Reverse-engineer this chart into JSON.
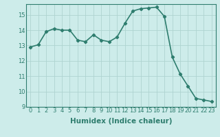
{
  "x": [
    0,
    1,
    2,
    3,
    4,
    5,
    6,
    7,
    8,
    9,
    10,
    11,
    12,
    13,
    14,
    15,
    16,
    17,
    18,
    19,
    20,
    21,
    22,
    23
  ],
  "y": [
    12.9,
    13.05,
    13.9,
    14.1,
    14.0,
    14.0,
    13.35,
    13.25,
    13.7,
    13.35,
    13.25,
    13.55,
    14.45,
    15.25,
    15.4,
    15.45,
    15.5,
    14.9,
    12.25,
    11.15,
    10.35,
    9.55,
    9.45,
    9.35
  ],
  "line_color": "#2e7d6e",
  "marker": "D",
  "marker_size": 2.2,
  "bg_color": "#cdecea",
  "grid_color": "#aed4d0",
  "xlabel": "Humidex (Indice chaleur)",
  "ylim": [
    9,
    15.7
  ],
  "xlim": [
    -0.5,
    23.5
  ],
  "yticks": [
    9,
    10,
    11,
    12,
    13,
    14,
    15
  ],
  "xticks": [
    0,
    1,
    2,
    3,
    4,
    5,
    6,
    7,
    8,
    9,
    10,
    11,
    12,
    13,
    14,
    15,
    16,
    17,
    18,
    19,
    20,
    21,
    22,
    23
  ],
  "tick_fontsize": 6,
  "label_fontsize": 7.5,
  "line_width": 1.2
}
